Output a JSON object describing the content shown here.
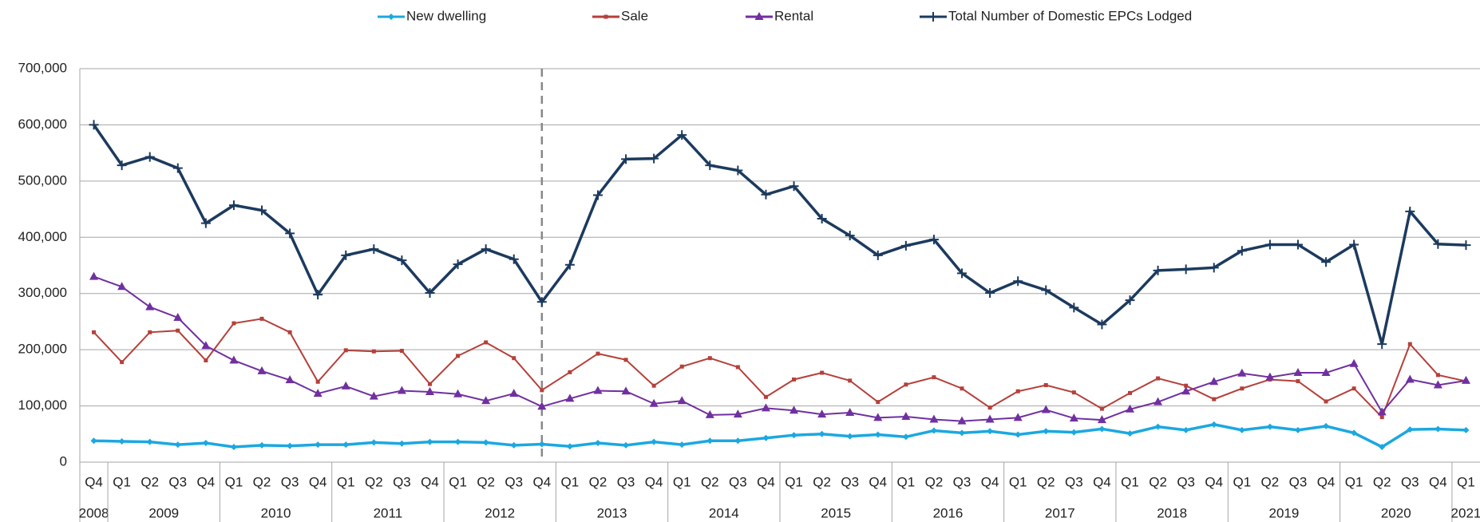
{
  "chart_data": {
    "type": "line",
    "categories": [
      "Q4",
      "Q1",
      "Q2",
      "Q3",
      "Q4",
      "Q1",
      "Q2",
      "Q3",
      "Q4",
      "Q1",
      "Q2",
      "Q3",
      "Q4",
      "Q1",
      "Q2",
      "Q3",
      "Q4",
      "Q1",
      "Q2",
      "Q3",
      "Q4",
      "Q1",
      "Q2",
      "Q3",
      "Q4",
      "Q1",
      "Q2",
      "Q3",
      "Q4",
      "Q1",
      "Q2",
      "Q3",
      "Q4",
      "Q1",
      "Q2",
      "Q3",
      "Q4",
      "Q1",
      "Q2",
      "Q3",
      "Q4",
      "Q1",
      "Q2",
      "Q3",
      "Q4",
      "Q1",
      "Q2",
      "Q3",
      "Q4",
      "Q1"
    ],
    "years": [
      "2008",
      "2009",
      "2009",
      "2009",
      "2009",
      "2010",
      "2010",
      "2010",
      "2010",
      "2011",
      "2011",
      "2011",
      "2011",
      "2012",
      "2012",
      "2012",
      "2012",
      "2013",
      "2013",
      "2013",
      "2013",
      "2014",
      "2014",
      "2014",
      "2014",
      "2015",
      "2015",
      "2015",
      "2015",
      "2016",
      "2016",
      "2016",
      "2016",
      "2017",
      "2017",
      "2017",
      "2017",
      "2018",
      "2018",
      "2018",
      "2018",
      "2019",
      "2019",
      "2019",
      "2019",
      "2020",
      "2020",
      "2020",
      "2020",
      "2021"
    ],
    "series": [
      {
        "name": "New dwelling",
        "color": "#1ba8e0",
        "marker": "diamond",
        "values": [
          38000,
          37000,
          36000,
          31000,
          34000,
          27000,
          30000,
          29000,
          31000,
          31000,
          35000,
          33000,
          36000,
          36000,
          35000,
          30000,
          32000,
          28000,
          34000,
          30000,
          36000,
          31000,
          38000,
          38000,
          43000,
          48000,
          50000,
          46000,
          49000,
          45000,
          56000,
          52000,
          55000,
          49000,
          55000,
          53000,
          59000,
          51000,
          63000,
          57000,
          67000,
          57000,
          63000,
          57000,
          64000,
          52000,
          27000,
          58000,
          59000,
          57000
        ]
      },
      {
        "name": "Sale",
        "color": "#b5403a",
        "marker": "square",
        "values": [
          231000,
          178000,
          231000,
          234000,
          181000,
          247000,
          255000,
          231000,
          143000,
          199000,
          197000,
          198000,
          139000,
          189000,
          213000,
          185000,
          128000,
          160000,
          193000,
          182000,
          136000,
          170000,
          185000,
          169000,
          116000,
          147000,
          159000,
          145000,
          107000,
          138000,
          151000,
          131000,
          97000,
          126000,
          137000,
          124000,
          95000,
          123000,
          149000,
          136000,
          112000,
          131000,
          147000,
          144000,
          108000,
          131000,
          80000,
          210000,
          155000,
          144000
        ]
      },
      {
        "name": "Rental",
        "color": "#7030a0",
        "marker": "triangle",
        "values": [
          330000,
          312000,
          276000,
          257000,
          207000,
          181000,
          162000,
          146000,
          122000,
          135000,
          117000,
          127000,
          125000,
          121000,
          109000,
          122000,
          99000,
          113000,
          127000,
          126000,
          104000,
          109000,
          84000,
          85000,
          96000,
          92000,
          85000,
          88000,
          79000,
          81000,
          76000,
          73000,
          76000,
          79000,
          93000,
          78000,
          75000,
          94000,
          107000,
          126000,
          143000,
          158000,
          151000,
          159000,
          159000,
          175000,
          89000,
          147000,
          137000,
          145000
        ]
      },
      {
        "name": "Total Number of Domestic EPCs Lodged",
        "color": "#1c3a5e",
        "marker": "plus",
        "values": [
          600000,
          528000,
          543000,
          523000,
          425000,
          457000,
          448000,
          407000,
          298000,
          368000,
          379000,
          359000,
          301000,
          352000,
          379000,
          361000,
          285000,
          351000,
          475000,
          539000,
          540000,
          582000,
          528000,
          519000,
          476000,
          491000,
          433000,
          403000,
          368000,
          385000,
          396000,
          336000,
          301000,
          322000,
          306000,
          275000,
          245000,
          288000,
          341000,
          343000,
          346000,
          376000,
          387000,
          387000,
          356000,
          387000,
          210000,
          446000,
          388000,
          386000
        ]
      }
    ],
    "ylim": [
      0,
      700000
    ],
    "yticks": [
      0,
      {
        "value": 100000,
        "label": "100,000"
      },
      {
        "value": 200000,
        "label": "200,000"
      },
      {
        "value": 300000,
        "label": "300,000"
      },
      {
        "value": 400000,
        "label": "400,000"
      },
      {
        "value": 500000,
        "label": "500,000"
      },
      {
        "value": 600000,
        "label": "600,000"
      },
      {
        "value": 700000,
        "label": "700,000"
      }
    ],
    "grid": true,
    "legend": "top"
  }
}
